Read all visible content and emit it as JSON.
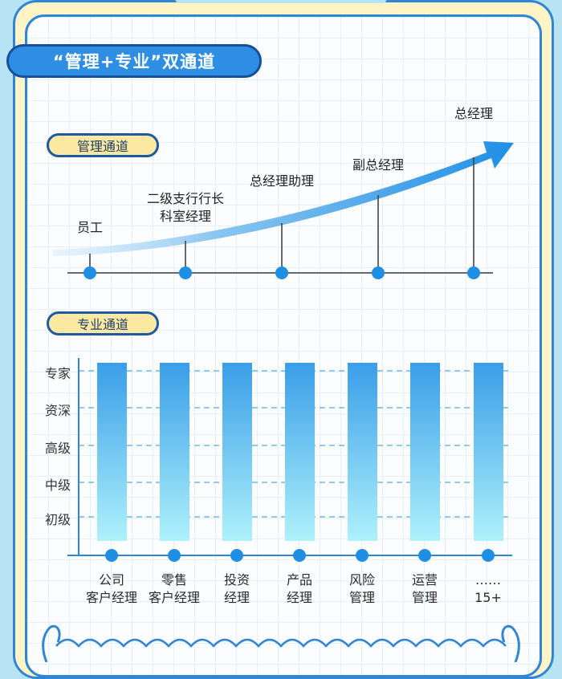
{
  "title": "“管理+专业”双通道",
  "management": {
    "label": "管理通道",
    "steps": [
      {
        "lines": [
          "员工"
        ]
      },
      {
        "lines": [
          "二级支行行长",
          "科室经理"
        ]
      },
      {
        "lines": [
          "总经理助理"
        ]
      },
      {
        "lines": [
          "副总经理"
        ]
      },
      {
        "lines": [
          "总经理"
        ]
      }
    ]
  },
  "professional": {
    "label": "专业通道",
    "levels": [
      "专家",
      "资深",
      "高级",
      "中级",
      "初级"
    ],
    "tracks": [
      {
        "line1": "公司",
        "line2": "客户经理"
      },
      {
        "line1": "零售",
        "line2": "客户经理"
      },
      {
        "line1": "投资",
        "line2": "经理"
      },
      {
        "line1": "产品",
        "line2": "经理"
      },
      {
        "line1": "风险",
        "line2": "管理"
      },
      {
        "line1": "运营",
        "line2": "管理"
      },
      {
        "line1": "……",
        "line2": "15+"
      }
    ]
  },
  "colors": {
    "accent": "#2d8ee4",
    "border": "#1c5aa3",
    "pill_fill": "#fde9a2",
    "frame_fill": "#fff4c6",
    "bar_top": "#3a9ee8",
    "bar_bottom": "#aef1fb"
  }
}
